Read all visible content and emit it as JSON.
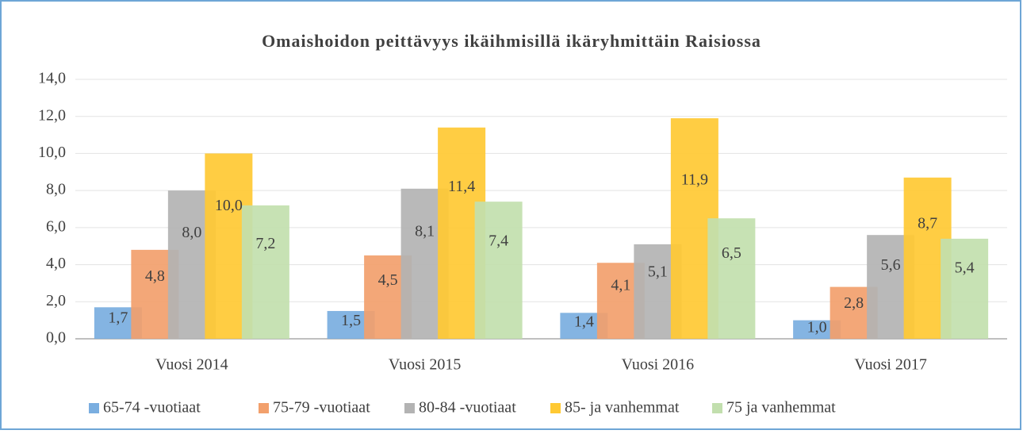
{
  "chart_data": {
    "type": "bar",
    "title": "Omaishoidon peittävyys ikäihmisillä ikäryhmittäin Raisiossa",
    "categories": [
      "Vuosi 2014",
      "Vuosi 2015",
      "Vuosi 2016",
      "Vuosi 2017"
    ],
    "series": [
      {
        "name": "65-74 -vuotiaat",
        "color": "#7aaee0",
        "values": [
          1.7,
          1.5,
          1.4,
          1.0
        ],
        "value_labels": [
          "1,7",
          "1,5",
          "1,4",
          "1,0"
        ]
      },
      {
        "name": "75-79 -vuotiaat",
        "color": "#f2a06c",
        "values": [
          4.8,
          4.5,
          4.1,
          2.8
        ],
        "value_labels": [
          "4,8",
          "4,5",
          "4,1",
          "2,8"
        ]
      },
      {
        "name": "80-84 -vuotiaat",
        "color": "#b3b3b3",
        "values": [
          8.0,
          8.1,
          5.1,
          5.6
        ],
        "value_labels": [
          "8,0",
          "8,1",
          "5,1",
          "5,6"
        ]
      },
      {
        "name": "85- ja vanhemmat",
        "color": "#ffc933",
        "values": [
          10.0,
          11.4,
          11.9,
          8.7
        ],
        "value_labels": [
          "10,0",
          "11,4",
          "11,9",
          "8,7"
        ]
      },
      {
        "name": "75 ja vanhemmat",
        "color": "#c2dfae",
        "values": [
          7.2,
          7.4,
          6.5,
          5.4
        ],
        "value_labels": [
          "7,2",
          "7,4",
          "6,5",
          "5,4"
        ]
      }
    ],
    "ylim": [
      0,
      14
    ],
    "yticks": [
      {
        "value": 0,
        "label": "0,0"
      },
      {
        "value": 2,
        "label": "2,0"
      },
      {
        "value": 4,
        "label": "4,0"
      },
      {
        "value": 6,
        "label": "6,0"
      },
      {
        "value": 8,
        "label": "8,0"
      },
      {
        "value": 10,
        "label": "10,0"
      },
      {
        "value": 12,
        "label": "12,0"
      },
      {
        "value": 14,
        "label": "14,0"
      }
    ],
    "grid": true,
    "legend": "bottom"
  }
}
